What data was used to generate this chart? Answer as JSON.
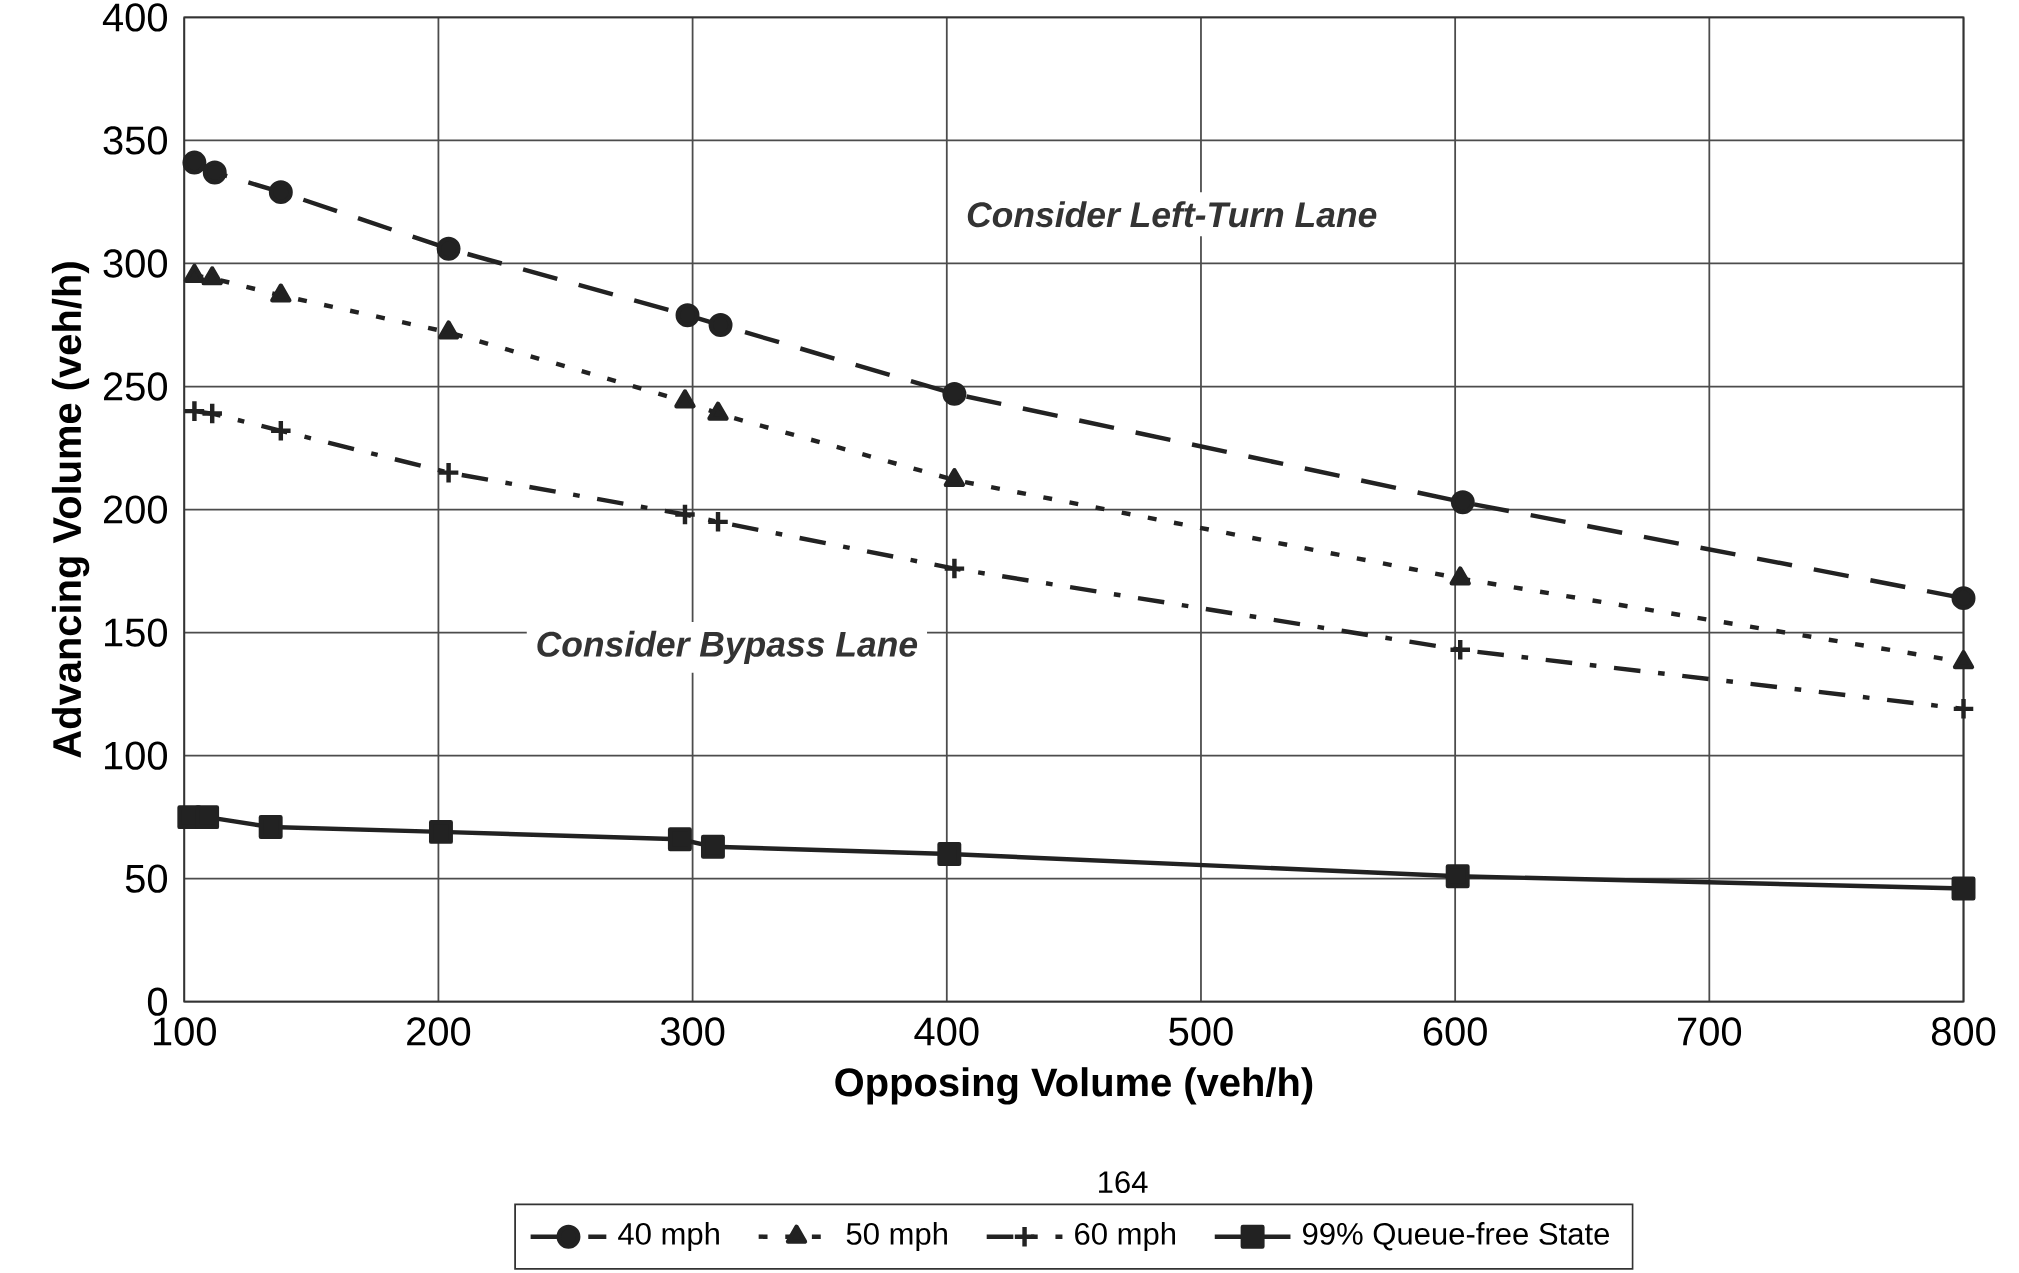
{
  "chart_data": {
    "type": "line",
    "xlabel": "Opposing Volume (veh/h)",
    "ylabel": "Advancing Volume (veh/h)",
    "xlim": [
      100,
      800
    ],
    "xticks": [
      100,
      200,
      300,
      400,
      500,
      600,
      700,
      800
    ],
    "ylim": [
      0,
      400
    ],
    "yticks": [
      0,
      50,
      100,
      150,
      200,
      250,
      300,
      350,
      400
    ],
    "grid": true,
    "legend": "bottom",
    "series": [
      {
        "name": "40 mph",
        "color": "#222222",
        "marker": "circle",
        "line_style": "dashed",
        "x": [
          104,
          112,
          138,
          204,
          298,
          311,
          403,
          603,
          800
        ],
        "values": [
          341,
          337,
          329,
          306,
          279,
          275,
          247,
          203,
          164
        ]
      },
      {
        "name": "50 mph",
        "color": "#222222",
        "marker": "triangle",
        "line_style": "dotted",
        "x": [
          104,
          111,
          138,
          204,
          297,
          310,
          403,
          602,
          800
        ],
        "values": [
          295,
          294,
          287,
          272,
          244,
          239,
          212,
          172,
          138
        ]
      },
      {
        "name": "60 mph",
        "color": "#222222",
        "marker": "cross",
        "line_style": "dashdot",
        "x": [
          104,
          111,
          138,
          204,
          297,
          310,
          403,
          602,
          800
        ],
        "values": [
          240,
          239,
          232,
          215,
          198,
          195,
          176,
          143,
          119
        ]
      },
      {
        "name": "99% Queue-free State",
        "color": "#222222",
        "marker": "square",
        "line_style": "solid",
        "x": [
          102,
          109,
          134,
          201,
          295,
          308,
          401,
          601,
          800
        ],
        "values": [
          75,
          75,
          71,
          69,
          66,
          63,
          60,
          51,
          46
        ]
      }
    ],
    "annotations": [
      "*Consider Left-Turn Lane*",
      "*Consider Bypass Lane*",
      "164"
    ]
  }
}
